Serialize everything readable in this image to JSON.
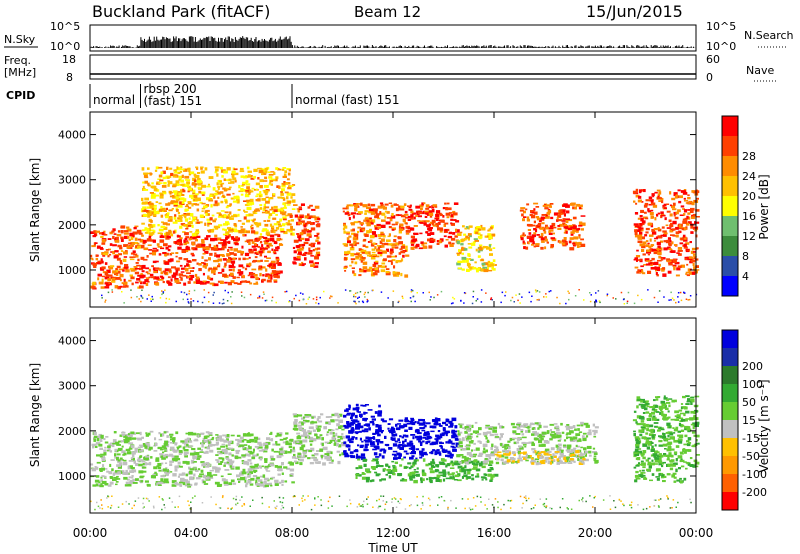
{
  "header": {
    "station": "Buckland Park (fitACF)",
    "beam": "Beam 12",
    "date": "15/Jun/2015"
  },
  "side_labels": {
    "nsky": "N.Sky",
    "freq": "Freq.",
    "freq_unit": "[MHz]",
    "cpid": "CPID",
    "nsearch": "N.Search",
    "nave": "Nave"
  },
  "noise_panel": {
    "left_ticks": [
      "10^5",
      "10^0"
    ],
    "right_ticks": [
      "10^5",
      "10^0"
    ]
  },
  "freq_panel": {
    "left_ticks": [
      "18",
      "8"
    ],
    "right_ticks": [
      "60",
      "0"
    ]
  },
  "cpid_panel": {
    "segments": [
      {
        "start_hour": 0.0,
        "label": "normal"
      },
      {
        "start_hour": 2.0,
        "label": "rbsp 200\n(fast) 151"
      },
      {
        "start_hour": 8.0,
        "label": "normal (fast)  151"
      }
    ]
  },
  "colorbars": {
    "power": {
      "label": "Power [dB]",
      "colors": [
        "#0000ff",
        "#2a4ea8",
        "#3c8c3c",
        "#6fbf6f",
        "#ffff00",
        "#ffc000",
        "#ff8c00",
        "#ff4000",
        "#ff0000"
      ],
      "ticks": [
        "4",
        "8",
        "12",
        "16",
        "20",
        "24",
        "28"
      ]
    },
    "velocity": {
      "label": "Velocity [m s⁻¹]",
      "colors": [
        "#ff0000",
        "#ff6000",
        "#ff9900",
        "#ffc000",
        "#c0c0c0",
        "#66cc33",
        "#33aa33",
        "#2c7a2c",
        "#1a2ea8",
        "#0000dd"
      ],
      "ticks": [
        "-200",
        "-100",
        "-50",
        "-15",
        "15",
        "50",
        "100",
        "200"
      ]
    }
  },
  "chart_data": {
    "type": "heatmap",
    "xlabel": "Time UT",
    "ylabel": "Slant Range [km]",
    "x_ticks": [
      "00:00",
      "04:00",
      "08:00",
      "12:00",
      "16:00",
      "20:00",
      "00:00"
    ],
    "y_ticks": [
      "1000",
      "2000",
      "3000",
      "4000"
    ],
    "xlim_hours": [
      0,
      24
    ],
    "ylim_km": [
      180,
      4500
    ],
    "panels": [
      {
        "name": "power",
        "regions": [
          {
            "t0": 0.0,
            "t1": 2.0,
            "r0": 600,
            "r1": 2000,
            "value": 26
          },
          {
            "t0": 2.0,
            "t1": 7.5,
            "r0": 700,
            "r1": 1800,
            "value": 27
          },
          {
            "t0": 2.0,
            "t1": 8.0,
            "r0": 1800,
            "r1": 3300,
            "value": 20
          },
          {
            "t0": 8.0,
            "t1": 9.0,
            "r0": 1100,
            "r1": 2500,
            "value": 27
          },
          {
            "t0": 10.0,
            "t1": 12.5,
            "r0": 900,
            "r1": 2500,
            "value": 24
          },
          {
            "t0": 12.5,
            "t1": 14.5,
            "r0": 1500,
            "r1": 2500,
            "value": 28
          },
          {
            "t0": 14.5,
            "t1": 16.0,
            "r0": 1000,
            "r1": 2000,
            "value": 18
          },
          {
            "t0": 17.0,
            "t1": 19.5,
            "r0": 1500,
            "r1": 2500,
            "value": 27
          },
          {
            "t0": 21.5,
            "t1": 24.0,
            "r0": 900,
            "r1": 2800,
            "value": 27
          }
        ]
      },
      {
        "name": "velocity",
        "regions": [
          {
            "t0": 0.0,
            "t1": 8.0,
            "r0": 800,
            "r1": 2000,
            "value": 0
          },
          {
            "t0": 8.0,
            "t1": 10.0,
            "r0": 1300,
            "r1": 2400,
            "value": 0
          },
          {
            "t0": 10.0,
            "t1": 11.5,
            "r0": 1400,
            "r1": 2600,
            "value": 250
          },
          {
            "t0": 11.5,
            "t1": 14.5,
            "r0": 1400,
            "r1": 2300,
            "value": 250
          },
          {
            "t0": 10.5,
            "t1": 16.0,
            "r0": 900,
            "r1": 1400,
            "value": 60
          },
          {
            "t0": 14.5,
            "t1": 20.0,
            "r0": 1300,
            "r1": 2200,
            "value": 0
          },
          {
            "t0": 16.0,
            "t1": 19.5,
            "r0": 1300,
            "r1": 1600,
            "value": -60
          },
          {
            "t0": 21.5,
            "t1": 24.0,
            "r0": 900,
            "r1": 2800,
            "value": 40
          }
        ]
      }
    ]
  }
}
